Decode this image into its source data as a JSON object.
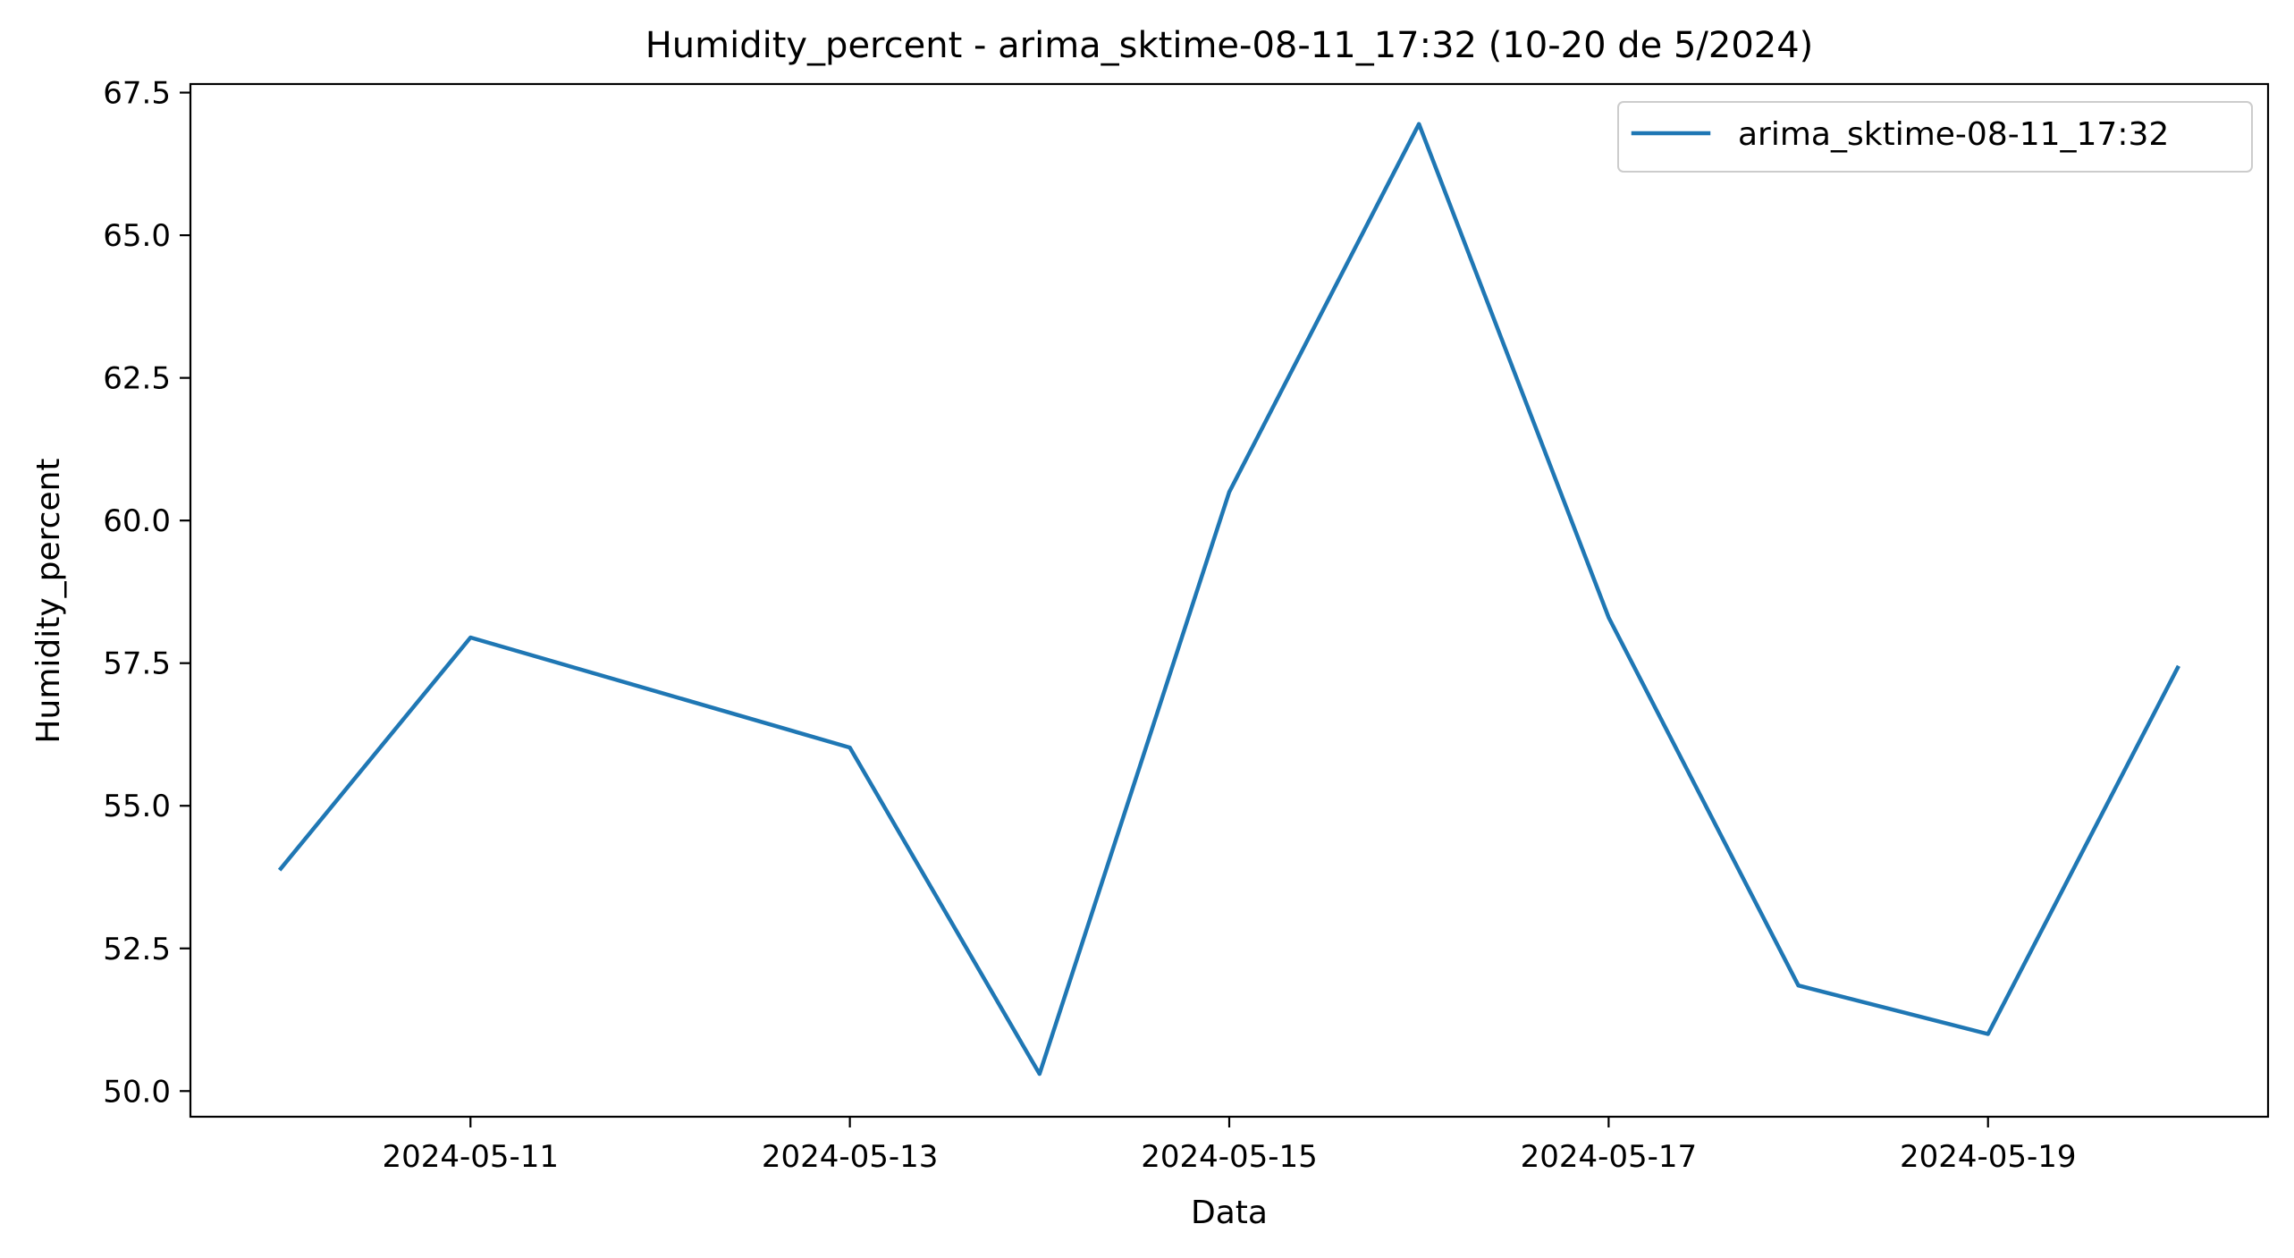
{
  "chart_data": {
    "type": "line",
    "title": "Humidity_percent - arima_sktime-08-11_17:32 (10-20 de 5/2024)",
    "xlabel": "Data",
    "ylabel": "Humidity_percent",
    "x": [
      "2024-05-10",
      "2024-05-11",
      "2024-05-13",
      "2024-05-14",
      "2024-05-15",
      "2024-05-16",
      "2024-05-17",
      "2024-05-18",
      "2024-05-19",
      "2024-05-20"
    ],
    "series": [
      {
        "name": "arima_sktime-08-11_17:32",
        "color": "#1f77b4",
        "values": [
          53.9,
          57.95,
          56.02,
          50.3,
          60.5,
          66.95,
          58.3,
          51.85,
          51.0,
          57.42
        ]
      }
    ],
    "xlim": [
      "2024-05-09T12:34",
      "2024-05-20T11:26"
    ],
    "ylim": [
      49.55,
      67.65
    ],
    "xticks": [
      "2024-05-11",
      "2024-05-13",
      "2024-05-15",
      "2024-05-17",
      "2024-05-19"
    ],
    "yticks": [
      "50.0",
      "52.5",
      "55.0",
      "57.5",
      "60.0",
      "62.5",
      "65.0",
      "67.5"
    ],
    "grid": false,
    "legend_position": "top-right"
  }
}
